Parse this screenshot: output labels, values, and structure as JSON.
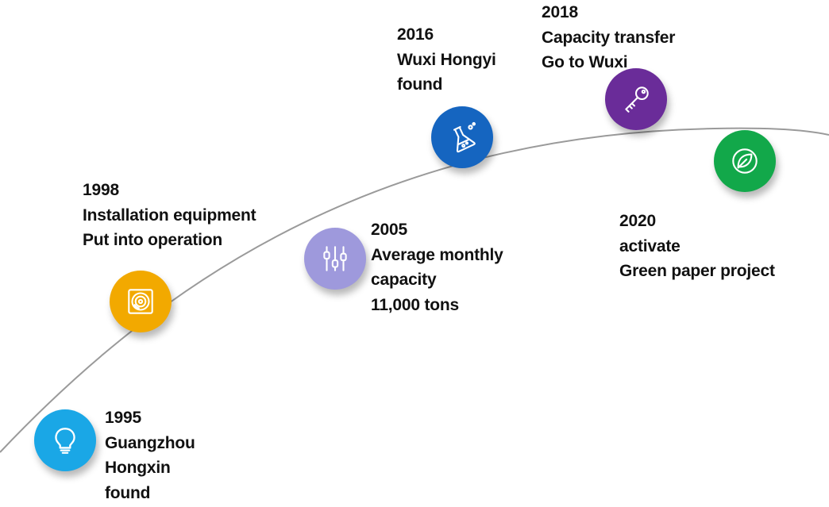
{
  "timeline": {
    "events": [
      {
        "year": "1995",
        "lines": [
          "Guangzhou",
          "Hongxin",
          "found"
        ],
        "icon": "lightbulb-icon",
        "color": "#1aa7e6"
      },
      {
        "year": "1998",
        "lines": [
          "Installation equipment",
          "Put into operation"
        ],
        "icon": "disc-icon",
        "color": "#f2a900"
      },
      {
        "year": "2005",
        "lines": [
          "Average monthly",
          "capacity",
          "11,000 tons"
        ],
        "icon": "sliders-icon",
        "color": "#9e99dc"
      },
      {
        "year": "2016",
        "lines": [
          "Wuxi Hongyi",
          "found"
        ],
        "icon": "flask-icon",
        "color": "#1565c0"
      },
      {
        "year": "2018",
        "lines": [
          "Capacity transfer",
          "Go to Wuxi"
        ],
        "icon": "key-icon",
        "color": "#6a2c99"
      },
      {
        "year": "2020",
        "lines": [
          "activate",
          "Green paper project"
        ],
        "icon": "leaf-icon",
        "color": "#12a84a"
      }
    ]
  }
}
